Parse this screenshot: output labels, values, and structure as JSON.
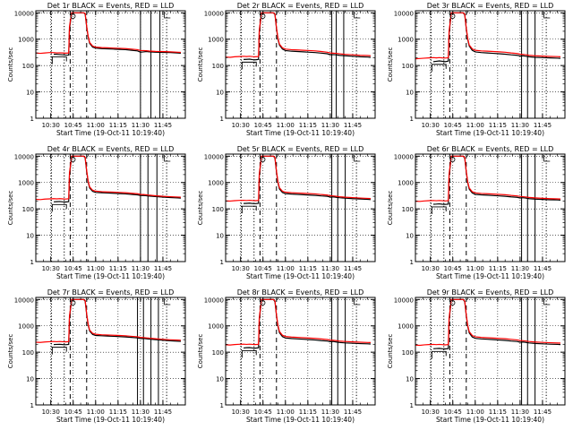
{
  "chart_data": {
    "type": "line",
    "shared": {
      "title_suffix": "BLACK = Events, RED = LLD",
      "xlabel": "Start Time (19-Oct-11 10:19:40)",
      "ylabel": "Counts/sec",
      "xticks": [
        "10:30",
        "10:45",
        "11:00",
        "11:15",
        "11:30",
        "11:45"
      ],
      "xtick_minutes": [
        10,
        25,
        40,
        55,
        70,
        85
      ],
      "xlim_minutes": [
        0,
        100
      ],
      "yticks": [
        "1",
        "10",
        "100",
        "1000",
        "10000"
      ],
      "ylim": [
        1,
        12000
      ],
      "yscale": "log",
      "series_names": [
        "Events",
        "LLD"
      ],
      "series_colors": [
        "#000000",
        "#ff0000"
      ],
      "dotted_lines_minutes": [
        10.5,
        19,
        87.5
      ],
      "dashed_lines_minutes": [
        23,
        34
      ],
      "x_minutes": [
        0,
        3,
        6,
        9,
        12,
        14,
        16,
        18,
        20,
        22,
        22.5,
        24,
        26,
        28,
        30,
        32,
        33,
        34,
        35,
        36,
        38,
        40,
        44,
        48,
        52,
        56,
        60,
        64,
        68,
        70,
        72,
        74,
        76,
        80,
        85,
        90,
        95,
        97
      ]
    },
    "panels": [
      {
        "title": "Det 1r",
        "events": [
          null,
          null,
          null,
          null,
          270,
          265,
          260,
          255,
          250,
          248,
          2400,
          10000,
          10000,
          10000,
          10000,
          10000,
          9000,
          3000,
          1200,
          700,
          500,
          460,
          440,
          430,
          420,
          410,
          400,
          380,
          360,
          320,
          330,
          340,
          330,
          320,
          315,
          310,
          300,
          295
        ],
        "lld": [
          300,
          290,
          300,
          310,
          310,
          300,
          305,
          300,
          295,
          300,
          3000,
          10000,
          10000,
          10000,
          10000,
          10000,
          9500,
          3200,
          1300,
          750,
          550,
          500,
          480,
          470,
          460,
          450,
          440,
          420,
          400,
          370,
          370,
          365,
          355,
          345,
          340,
          330,
          320,
          315
        ],
        "solid_lines_minutes": [
          70,
          77,
          83
        ]
      },
      {
        "title": "Det 2r",
        "events": [
          null,
          null,
          null,
          null,
          170,
          172,
          175,
          168,
          165,
          170,
          1800,
          10000,
          10000,
          10000,
          10000,
          10000,
          8500,
          2600,
          1000,
          600,
          420,
          370,
          350,
          340,
          330,
          320,
          310,
          295,
          280,
          255,
          260,
          255,
          245,
          235,
          225,
          215,
          210,
          205
        ],
        "lld": [
          210,
          205,
          215,
          220,
          225,
          220,
          225,
          218,
          215,
          220,
          2200,
          10000,
          10000,
          10000,
          10000,
          10000,
          9000,
          2800,
          1100,
          650,
          470,
          420,
          400,
          390,
          380,
          370,
          360,
          340,
          320,
          300,
          295,
          290,
          280,
          265,
          255,
          245,
          240,
          235
        ],
        "solid_lines_minutes": [
          71,
          74,
          79
        ]
      },
      {
        "title": "Det 3r",
        "events": [
          null,
          null,
          null,
          null,
          140,
          145,
          150,
          145,
          140,
          148,
          1600,
          10000,
          10000,
          10000,
          10000,
          10000,
          8200,
          2500,
          950,
          550,
          380,
          330,
          310,
          300,
          290,
          280,
          270,
          255,
          245,
          230,
          235,
          225,
          215,
          205,
          200,
          195,
          190,
          188
        ],
        "lld": [
          180,
          185,
          190,
          195,
          200,
          195,
          200,
          195,
          192,
          198,
          2000,
          10000,
          10000,
          10000,
          10000,
          10000,
          8800,
          2700,
          1050,
          600,
          430,
          380,
          360,
          350,
          340,
          330,
          320,
          300,
          285,
          270,
          265,
          255,
          245,
          235,
          228,
          222,
          218,
          215
        ],
        "solid_lines_minutes": [
          71,
          75,
          80
        ]
      },
      {
        "title": "Det 4r",
        "events": [
          null,
          null,
          null,
          null,
          185,
          188,
          190,
          185,
          182,
          188,
          1900,
          10000,
          10000,
          10000,
          10000,
          10000,
          8600,
          2700,
          1050,
          620,
          460,
          420,
          410,
          400,
          390,
          380,
          370,
          355,
          340,
          320,
          325,
          315,
          305,
          295,
          280,
          270,
          260,
          255
        ],
        "lld": [
          230,
          225,
          235,
          240,
          245,
          240,
          245,
          240,
          236,
          242,
          2300,
          10000,
          10000,
          10000,
          10000,
          10000,
          9100,
          2900,
          1150,
          680,
          510,
          470,
          450,
          440,
          430,
          420,
          410,
          390,
          375,
          355,
          350,
          340,
          330,
          315,
          300,
          290,
          282,
          278
        ],
        "solid_lines_minutes": [
          70,
          75,
          81
        ]
      },
      {
        "title": "Det 5r",
        "events": [
          null,
          null,
          null,
          null,
          160,
          162,
          165,
          160,
          158,
          162,
          1700,
          10000,
          10000,
          10000,
          10000,
          10000,
          8300,
          2550,
          980,
          570,
          420,
          380,
          365,
          355,
          345,
          335,
          325,
          310,
          300,
          280,
          285,
          275,
          265,
          255,
          245,
          238,
          230,
          225
        ],
        "lld": [
          200,
          198,
          205,
          210,
          212,
          208,
          212,
          208,
          205,
          210,
          2100,
          10000,
          10000,
          10000,
          10000,
          10000,
          8900,
          2750,
          1080,
          630,
          470,
          430,
          410,
          400,
          390,
          380,
          370,
          350,
          335,
          315,
          310,
          300,
          290,
          278,
          268,
          258,
          250,
          246
        ],
        "solid_lines_minutes": [
          71,
          75,
          80
        ]
      },
      {
        "title": "Det 6r",
        "events": [
          null,
          null,
          null,
          null,
          150,
          152,
          155,
          150,
          148,
          152,
          1650,
          10000,
          10000,
          10000,
          10000,
          10000,
          8200,
          2500,
          960,
          560,
          400,
          355,
          340,
          330,
          320,
          310,
          300,
          285,
          275,
          260,
          265,
          255,
          245,
          235,
          228,
          222,
          218,
          215
        ],
        "lld": [
          195,
          192,
          200,
          205,
          208,
          204,
          208,
          204,
          200,
          206,
          2050,
          10000,
          10000,
          10000,
          10000,
          10000,
          8800,
          2700,
          1060,
          620,
          450,
          405,
          385,
          375,
          365,
          355,
          345,
          325,
          310,
          295,
          290,
          282,
          272,
          262,
          252,
          245,
          240,
          238
        ],
        "solid_lines_minutes": [
          71,
          75,
          80
        ]
      },
      {
        "title": "Det 7r",
        "events": [
          null,
          null,
          null,
          null,
          195,
          198,
          200,
          195,
          192,
          198,
          1950,
          10000,
          10000,
          10000,
          10000,
          10000,
          8700,
          2750,
          1080,
          640,
          470,
          430,
          420,
          410,
          400,
          390,
          380,
          365,
          350,
          330,
          335,
          325,
          315,
          300,
          285,
          272,
          262,
          258
        ],
        "lld": [
          240,
          235,
          245,
          250,
          255,
          250,
          255,
          250,
          246,
          252,
          2350,
          10000,
          10000,
          10000,
          10000,
          10000,
          9200,
          2950,
          1170,
          690,
          520,
          480,
          460,
          450,
          440,
          430,
          420,
          400,
          385,
          365,
          360,
          350,
          340,
          325,
          308,
          296,
          288,
          284
        ],
        "solid_lines_minutes": [
          68,
          72,
          77,
          82
        ]
      },
      {
        "title": "Det 8r",
        "events": [
          null,
          null,
          null,
          null,
          145,
          148,
          150,
          145,
          143,
          148,
          1620,
          10000,
          10000,
          10000,
          10000,
          10000,
          8200,
          2500,
          950,
          550,
          390,
          345,
          330,
          320,
          310,
          300,
          290,
          275,
          265,
          250,
          255,
          245,
          235,
          225,
          218,
          212,
          208,
          205
        ],
        "lld": [
          190,
          188,
          195,
          200,
          202,
          198,
          202,
          198,
          195,
          200,
          2000,
          10000,
          10000,
          10000,
          10000,
          10000,
          8800,
          2700,
          1050,
          610,
          440,
          395,
          375,
          365,
          355,
          345,
          335,
          318,
          303,
          288,
          283,
          275,
          265,
          255,
          246,
          239,
          234,
          232
        ],
        "solid_lines_minutes": [
          71,
          75,
          80
        ]
      },
      {
        "title": "Det 9r",
        "events": [
          null,
          null,
          null,
          null,
          135,
          138,
          140,
          135,
          133,
          138,
          1550,
          10000,
          10000,
          10000,
          10000,
          10000,
          8100,
          2450,
          930,
          540,
          380,
          335,
          320,
          310,
          300,
          290,
          280,
          265,
          255,
          240,
          245,
          235,
          225,
          215,
          208,
          202,
          198,
          195
        ],
        "lld": [
          185,
          182,
          190,
          195,
          198,
          194,
          198,
          194,
          190,
          196,
          1950,
          10000,
          10000,
          10000,
          10000,
          10000,
          8700,
          2650,
          1030,
          600,
          430,
          385,
          365,
          355,
          345,
          335,
          325,
          308,
          293,
          278,
          273,
          265,
          255,
          245,
          236,
          229,
          224,
          222
        ],
        "solid_lines_minutes": [
          71,
          75,
          80
        ]
      }
    ]
  }
}
